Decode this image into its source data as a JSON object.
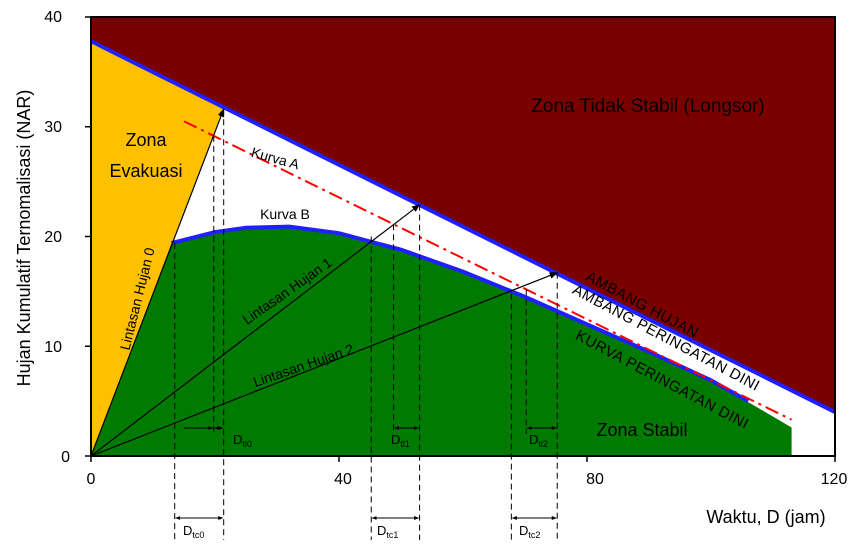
{
  "colors": {
    "unstable_zone": "#7a0000",
    "evacuation_zone": "#ffc000",
    "stable_zone": "#007a00",
    "threshold_line": "#1f1fff",
    "warning_line": "#ff0000",
    "axis": "#000000"
  },
  "axes": {
    "ylabel": "Hujan Kumulatif Ternomalisasi (NAR)",
    "xlabel": "Waktu, D (jam)",
    "xlim": [
      0,
      120
    ],
    "ylim": [
      0,
      40
    ],
    "xticks": [
      "0",
      "40",
      "80",
      "120"
    ],
    "yticks": [
      "0",
      "10",
      "20",
      "30",
      "40"
    ],
    "xtick_values": [
      0,
      40,
      80,
      120
    ],
    "ytick_values": [
      0,
      10,
      20,
      30,
      40
    ]
  },
  "zones": {
    "unstable": "Zona Tidak Stabil (Longsor)",
    "evacuation_line1": "Zona",
    "evacuation_line2": "Evakuasi",
    "stable": "Zona Stabil"
  },
  "curves": {
    "kurva_a": "Kurva A",
    "kurva_b": "Kurva B",
    "ambang_hujan": "AMBANG HUJAN",
    "ambang_peringatan": "AMBANG PERINGATAN DINI",
    "kurva_peringatan": "KURVA PERINGATAN DINI"
  },
  "paths": {
    "lintasan_0": "Lintasan Hujan 0",
    "lintasan_1": "Lintasan Hujan 1",
    "lintasan_2": "Lintasan Hujan 2"
  },
  "dim_labels": {
    "dtc0": {
      "main": "D",
      "sub": "tc0"
    },
    "dtc1": {
      "main": "D",
      "sub": "tc1"
    },
    "dtc2": {
      "main": "D",
      "sub": "tc2"
    },
    "dtl0": {
      "main": "D",
      "sub": "tl0"
    },
    "dtl1": {
      "main": "D",
      "sub": "tl1"
    },
    "dtl2": {
      "main": "D",
      "sub": "tl2"
    }
  },
  "model": {
    "threshold_line": {
      "y_at_0": 37.8,
      "y_at_120": 4
    },
    "warning_line": {
      "from": [
        15,
        30.5
      ],
      "to": [
        113,
        3.3
      ]
    },
    "stable_curve": [
      [
        13,
        19.4
      ],
      [
        20,
        20.4
      ],
      [
        25,
        20.8
      ],
      [
        32,
        20.9
      ],
      [
        40,
        20.3
      ],
      [
        50,
        18.8
      ],
      [
        60,
        16.8
      ],
      [
        70,
        14.5
      ],
      [
        80,
        12.0
      ],
      [
        90,
        9.5
      ],
      [
        100,
        6.9
      ],
      [
        113,
        2.6
      ]
    ],
    "rain_paths": [
      {
        "to": [
          21.4,
          31.6
        ]
      },
      {
        "to": [
          53,
          22.9
        ]
      },
      {
        "to": [
          75.2,
          16.7
        ]
      }
    ],
    "dtc_pairs": [
      [
        13.5,
        21.4
      ],
      [
        45.2,
        53
      ],
      [
        67.8,
        75.2
      ]
    ],
    "dtl_pairs": [
      [
        19.8,
        21.4
      ],
      [
        48.8,
        53
      ],
      [
        70.2,
        75.2
      ]
    ]
  }
}
